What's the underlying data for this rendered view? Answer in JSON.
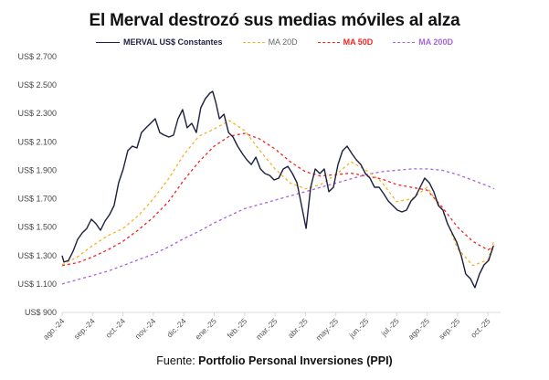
{
  "chart_data": {
    "type": "line",
    "title": "El Merval destrozó sus medias móviles al alza",
    "xlabel": "",
    "ylabel": "",
    "ylim": [
      900,
      2700
    ],
    "yticks": [
      900,
      1100,
      1300,
      1500,
      1700,
      1900,
      2100,
      2300,
      2500,
      2700
    ],
    "ytick_labels": [
      "US$ 900",
      "US$ 1.100",
      "US$ 1.300",
      "US$ 1.500",
      "US$ 1.700",
      "US$ 1.900",
      "US$ 2.100",
      "US$ 2.300",
      "US$ 2.500",
      "US$ 2.700"
    ],
    "xtick_labels": [
      "ago.-24",
      "sep.-24",
      "oct.-24",
      "nov.-24",
      "dic.-24",
      "ene.-25",
      "feb.-25",
      "mar.-25",
      "abr.-25",
      "may.-25",
      "jun.-25",
      "jul.-25",
      "ago.-25",
      "sep.-25",
      "oct.-25"
    ],
    "x_unit": "months since ago.-24",
    "xlim": [
      0,
      14.4
    ],
    "grid": false,
    "legend_position": "top-center",
    "series": [
      {
        "name": "MERVAL US$ Constantes",
        "color": "#1c1f3f",
        "style": "solid",
        "x": [
          0.0,
          0.06,
          0.21,
          0.36,
          0.51,
          0.66,
          0.81,
          0.96,
          1.11,
          1.26,
          1.41,
          1.56,
          1.71,
          1.86,
          2.01,
          2.16,
          2.31,
          2.46,
          2.61,
          2.76,
          2.91,
          3.06,
          3.21,
          3.36,
          3.51,
          3.66,
          3.81,
          3.96,
          4.11,
          4.26,
          4.41,
          4.56,
          4.71,
          4.86,
          4.95,
          5.05,
          5.17,
          5.32,
          5.47,
          5.62,
          5.77,
          5.92,
          6.07,
          6.22,
          6.37,
          6.52,
          6.67,
          6.82,
          6.97,
          7.12,
          7.27,
          7.42,
          7.57,
          7.72,
          7.87,
          8.02,
          8.17,
          8.32,
          8.47,
          8.62,
          8.77,
          8.92,
          9.07,
          9.22,
          9.37,
          9.52,
          9.67,
          9.82,
          9.97,
          10.12,
          10.27,
          10.42,
          10.57,
          10.72,
          10.87,
          11.02,
          11.17,
          11.32,
          11.47,
          11.62,
          11.77,
          11.92,
          12.07,
          12.22,
          12.37,
          12.52,
          12.67,
          12.82,
          12.97,
          13.12,
          13.27,
          13.42,
          13.57,
          13.72,
          13.87,
          14.02,
          14.17
        ],
        "y": [
          1300,
          1254,
          1266,
          1330,
          1414,
          1459,
          1491,
          1556,
          1524,
          1478,
          1543,
          1588,
          1652,
          1813,
          1909,
          2038,
          2070,
          2057,
          2166,
          2199,
          2231,
          2263,
          2166,
          2147,
          2134,
          2147,
          2263,
          2327,
          2199,
          2231,
          2166,
          2340,
          2404,
          2443,
          2456,
          2379,
          2263,
          2295,
          2166,
          2134,
          2070,
          2019,
          1974,
          1941,
          1993,
          1909,
          1877,
          1864,
          1832,
          1845,
          1909,
          1928,
          1877,
          1813,
          1652,
          1491,
          1781,
          1909,
          1877,
          1909,
          1749,
          1781,
          1941,
          2038,
          2070,
          2019,
          1974,
          1941,
          1877,
          1845,
          1781,
          1781,
          1736,
          1684,
          1652,
          1620,
          1607,
          1620,
          1684,
          1716,
          1781,
          1845,
          1813,
          1749,
          1652,
          1620,
          1524,
          1459,
          1395,
          1300,
          1170,
          1138,
          1074,
          1170,
          1234,
          1266,
          1363
        ]
      },
      {
        "name": "MA 20D",
        "color": "#f5b323",
        "style": "dashed",
        "x": [
          0.0,
          0.5,
          1.0,
          1.5,
          2.0,
          2.5,
          3.0,
          3.5,
          4.0,
          4.5,
          5.0,
          5.5,
          6.0,
          6.5,
          7.0,
          7.5,
          8.0,
          8.5,
          9.0,
          9.5,
          10.0,
          10.5,
          11.0,
          11.5,
          12.0,
          12.5,
          13.0,
          13.5,
          14.0,
          14.2
        ],
        "y": [
          1235,
          1290,
          1370,
          1440,
          1490,
          1580,
          1700,
          1840,
          2010,
          2140,
          2190,
          2250,
          2180,
          2040,
          1910,
          1810,
          1770,
          1800,
          1870,
          1960,
          1900,
          1820,
          1680,
          1700,
          1780,
          1620,
          1350,
          1230,
          1270,
          1410
        ]
      },
      {
        "name": "MA 50D",
        "color": "#f02323",
        "style": "dashed",
        "x": [
          0.0,
          0.5,
          1.0,
          1.5,
          2.0,
          2.5,
          3.0,
          3.5,
          4.0,
          4.5,
          5.0,
          5.5,
          6.0,
          6.5,
          7.0,
          7.5,
          8.0,
          8.5,
          9.0,
          9.5,
          10.0,
          10.5,
          11.0,
          11.5,
          12.0,
          12.5,
          13.0,
          13.5,
          14.0,
          14.2
        ],
        "y": [
          1230,
          1250,
          1290,
          1340,
          1400,
          1480,
          1570,
          1680,
          1830,
          1960,
          2070,
          2140,
          2160,
          2120,
          2050,
          1960,
          1890,
          1860,
          1870,
          1880,
          1860,
          1840,
          1800,
          1780,
          1760,
          1640,
          1500,
          1400,
          1340,
          1370
        ]
      },
      {
        "name": "MA 200D",
        "color": "#a763e0",
        "style": "dashed",
        "x": [
          0.0,
          0.5,
          1.0,
          1.5,
          2.0,
          2.5,
          3.0,
          3.5,
          4.0,
          4.5,
          5.0,
          5.5,
          6.0,
          6.5,
          7.0,
          7.5,
          8.0,
          8.5,
          9.0,
          9.5,
          10.0,
          10.5,
          11.0,
          11.5,
          12.0,
          12.5,
          13.0,
          13.5,
          14.0,
          14.2
        ],
        "y": [
          1100,
          1130,
          1160,
          1190,
          1230,
          1270,
          1310,
          1360,
          1420,
          1470,
          1530,
          1580,
          1630,
          1660,
          1690,
          1720,
          1750,
          1780,
          1810,
          1840,
          1870,
          1890,
          1900,
          1910,
          1910,
          1900,
          1870,
          1830,
          1790,
          1770
        ]
      }
    ]
  },
  "source": {
    "prefix": "Fuente: ",
    "name": "Portfolio Personal Inversiones (PPI)"
  }
}
